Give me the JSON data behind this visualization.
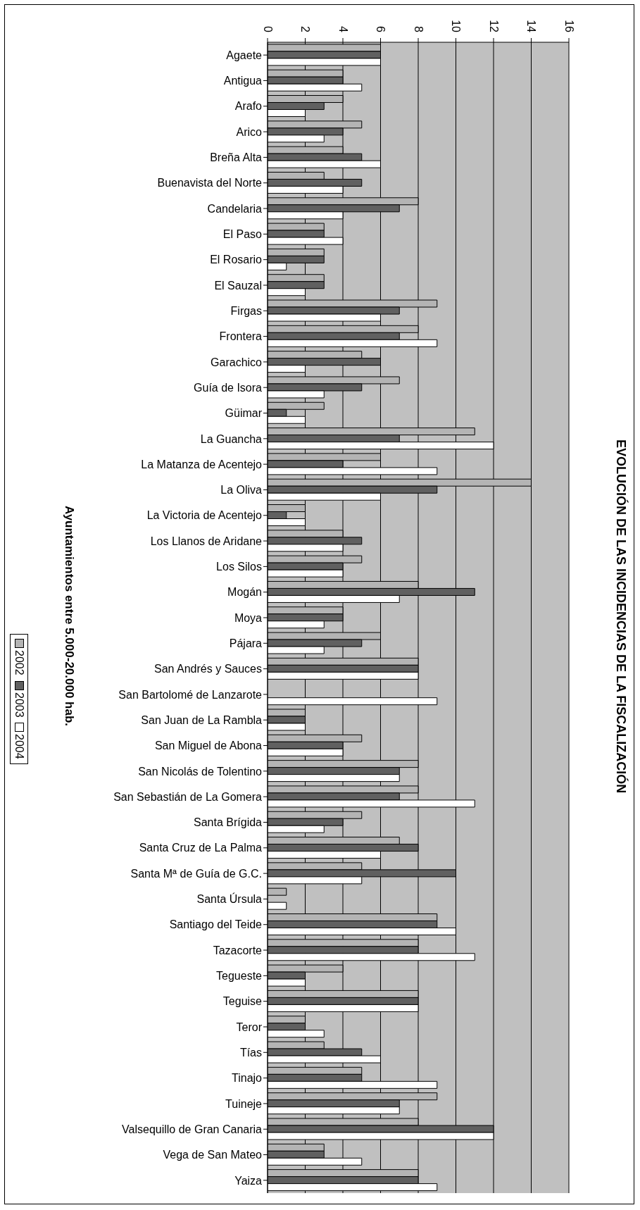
{
  "chart_data": {
    "type": "bar",
    "orientation": "horizontal",
    "title": "EVOLUCIÓN DE LAS INCIDENCIAS DE LA FISCALIZACIÓN",
    "ylabel": "Ayuntamientos entre 5.000-20.000 hab.",
    "categories": [
      "Agaete",
      "Antigua",
      "Arafo",
      "Arico",
      "Breña Alta",
      "Buenavista del Norte",
      "Candelaria",
      "El Paso",
      "El Rosario",
      "El Sauzal",
      "Firgas",
      "Frontera",
      "Garachico",
      "Guía de Isora",
      "Güimar",
      "La Guancha",
      "La Matanza de Acentejo",
      "La Oliva",
      "La Victoria de Acentejo",
      "Los Llanos de Aridane",
      "Los Silos",
      "Mogán",
      "Moya",
      "Pájara",
      "San Andrés y Sauces",
      "San Bartolomé de Lanzarote",
      "San Juan de La Rambla",
      "San Miguel de Abona",
      "San Nicolás de Tolentino",
      "San Sebastián de La Gomera",
      "Santa Brígida",
      "Santa Cruz de La Palma",
      "Santa Mª de Guía de G.C.",
      "Santa Úrsula",
      "Santiago del Teide",
      "Tazacorte",
      "Tegueste",
      "Teguise",
      "Teror",
      "Tías",
      "Tinajo",
      "Tuineje",
      "Valsequillo de Gran Canaria",
      "Vega de San Mateo",
      "Yaiza"
    ],
    "series": [
      {
        "name": "2002",
        "color": "#b4b4b4",
        "values": [
          6,
          4,
          4,
          5,
          4,
          3,
          8,
          3,
          3,
          3,
          9,
          8,
          5,
          7,
          3,
          11,
          6,
          14,
          2,
          4,
          5,
          8,
          4,
          6,
          8,
          0,
          2,
          5,
          8,
          8,
          5,
          7,
          5,
          1,
          9,
          8,
          4,
          8,
          2,
          3,
          5,
          9,
          8,
          3,
          8
        ]
      },
      {
        "name": "2003",
        "color": "#606060",
        "values": [
          6,
          4,
          3,
          4,
          5,
          5,
          7,
          3,
          3,
          3,
          7,
          7,
          6,
          5,
          1,
          7,
          4,
          9,
          1,
          5,
          4,
          11,
          4,
          5,
          8,
          0,
          2,
          4,
          7,
          7,
          4,
          8,
          10,
          0,
          9,
          8,
          2,
          8,
          2,
          5,
          5,
          7,
          12,
          3,
          8
        ]
      },
      {
        "name": "2004",
        "color": "#ffffff",
        "values": [
          6,
          5,
          2,
          3,
          6,
          4,
          4,
          4,
          1,
          2,
          6,
          9,
          2,
          3,
          2,
          12,
          9,
          6,
          2,
          4,
          4,
          7,
          3,
          3,
          8,
          9,
          2,
          4,
          7,
          11,
          3,
          6,
          5,
          1,
          10,
          11,
          2,
          8,
          3,
          6,
          9,
          7,
          12,
          5,
          9
        ]
      }
    ],
    "xlim": [
      0,
      16
    ],
    "xticks": [
      0,
      2,
      4,
      6,
      8,
      10,
      12,
      14,
      16
    ],
    "grid": "x",
    "legend": "left"
  }
}
